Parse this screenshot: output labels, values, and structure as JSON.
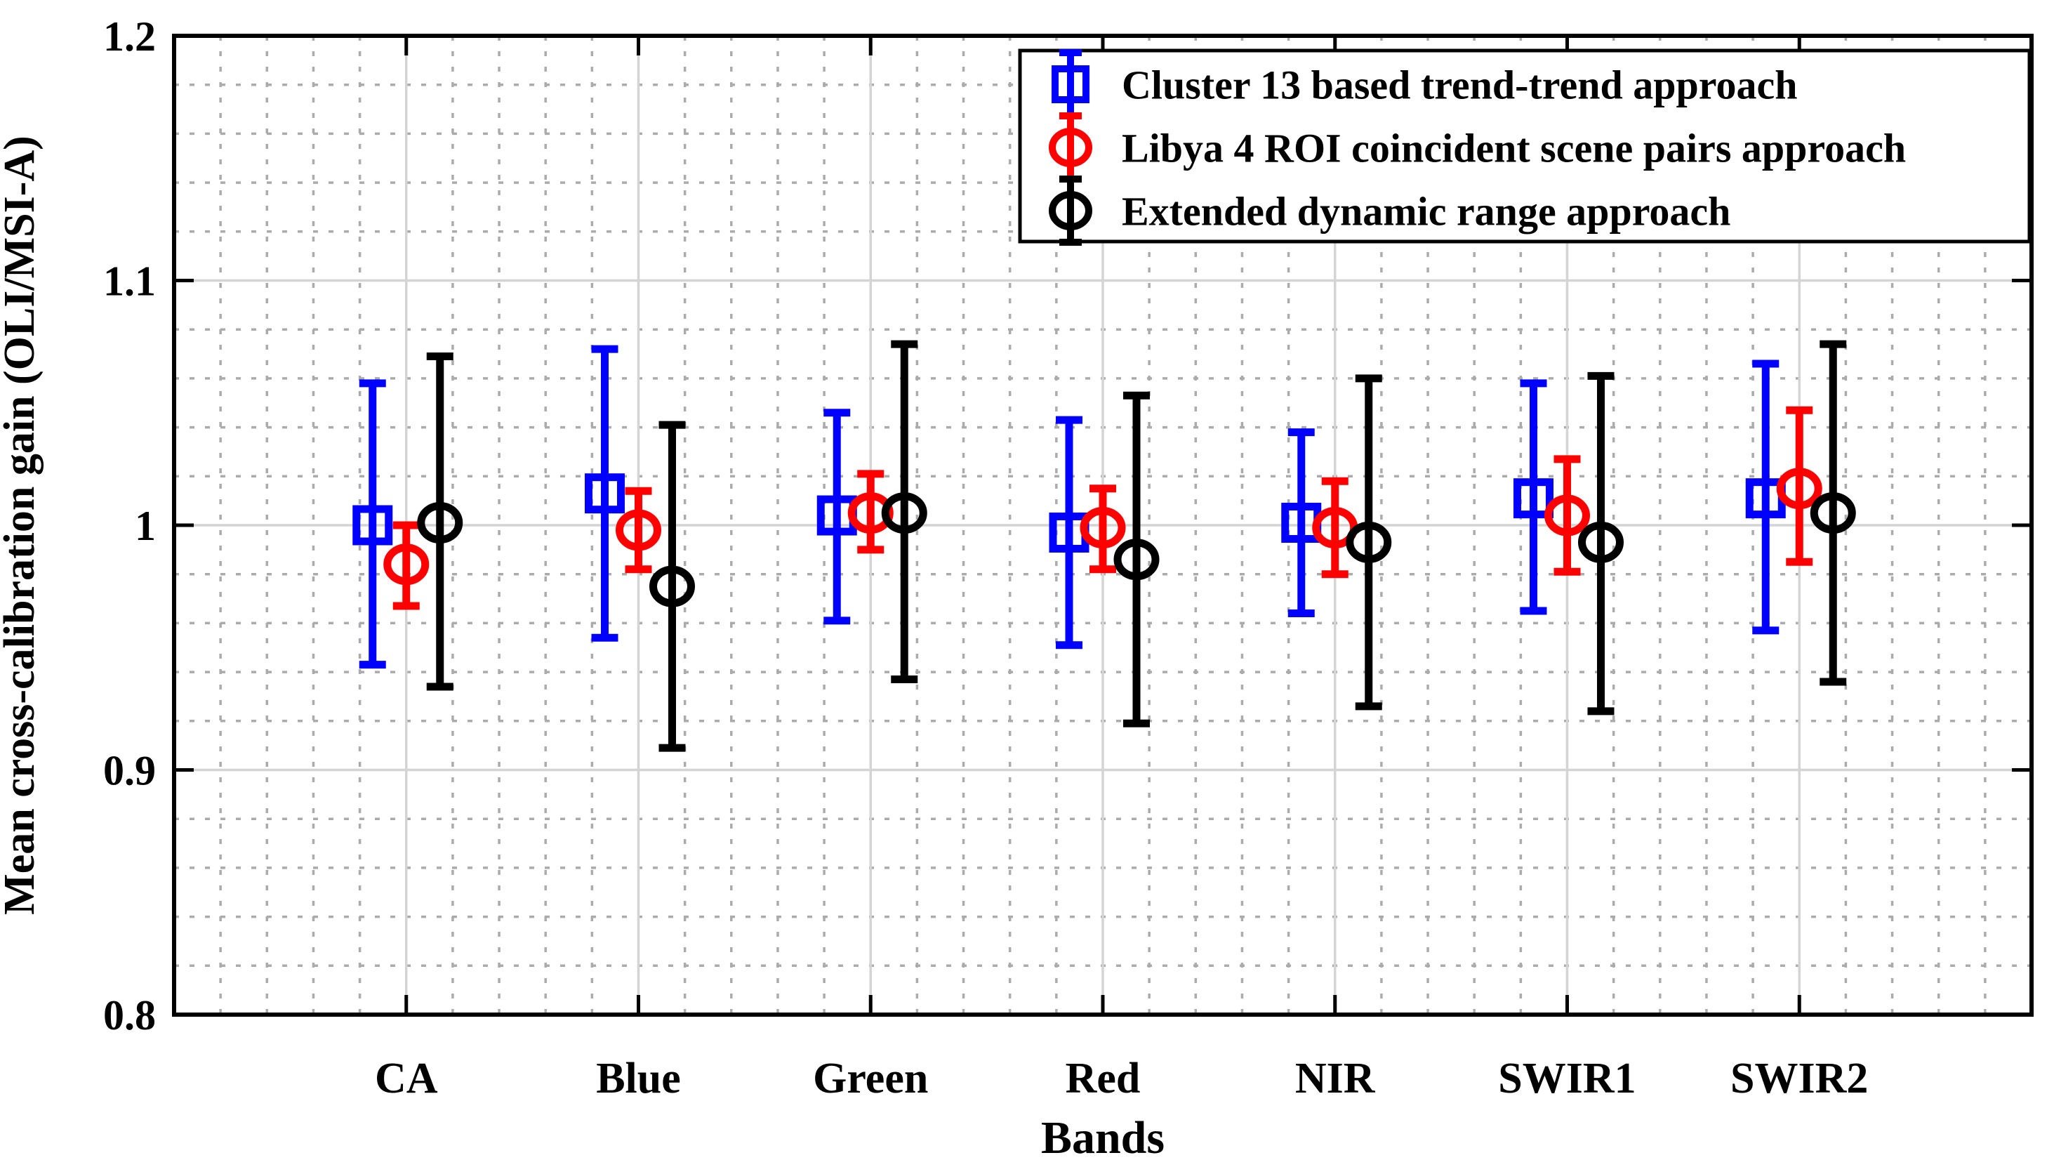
{
  "chart_data": {
    "type": "errorbar",
    "title": "",
    "xlabel": "Bands",
    "ylabel": "Mean cross-calibration gain (OLI/MSI-A)",
    "categories": [
      "CA",
      "Blue",
      "Green",
      "Red",
      "NIR",
      "SWIR1",
      "SWIR2"
    ],
    "ylim": [
      0.8,
      1.2
    ],
    "yticks": [
      {
        "value": 0.8,
        "label": "0.8"
      },
      {
        "value": 0.9,
        "label": "0.9"
      },
      {
        "value": 1.0,
        "label": "1"
      },
      {
        "value": 1.1,
        "label": "1.1"
      },
      {
        "value": 1.2,
        "label": "1.2"
      }
    ],
    "y_minor_step": 0.02,
    "x_minor_subdivisions": 5,
    "grid": {
      "major": true,
      "minor": true
    },
    "legend_position": "top-right-inside",
    "colors": {
      "series_blue": "#0000ff",
      "series_red": "#ff0000",
      "series_black": "#000000",
      "grid_major": "#d4d4d4",
      "grid_minor": "#ababab",
      "axis": "#000000",
      "background": "#ffffff"
    },
    "series": [
      {
        "name": "Cluster 13 based trend-trend approach",
        "marker": "square",
        "color": "#0000ff",
        "values": [
          1.0,
          1.013,
          1.004,
          0.997,
          1.001,
          1.011,
          1.011
        ],
        "upper": [
          1.058,
          1.072,
          1.046,
          1.043,
          1.038,
          1.058,
          1.066
        ],
        "lower": [
          0.943,
          0.954,
          0.961,
          0.951,
          0.964,
          0.965,
          0.957
        ]
      },
      {
        "name": "Libya 4 ROI coincident scene pairs approach",
        "marker": "circle",
        "color": "#ff0000",
        "values": [
          0.984,
          0.998,
          1.005,
          0.999,
          0.999,
          1.004,
          1.015
        ],
        "upper": [
          1.0,
          1.014,
          1.021,
          1.015,
          1.018,
          1.027,
          1.047
        ],
        "lower": [
          0.967,
          0.982,
          0.99,
          0.982,
          0.98,
          0.981,
          0.985
        ]
      },
      {
        "name": "Extended dynamic range approach",
        "marker": "circle",
        "color": "#000000",
        "values": [
          1.001,
          0.975,
          1.005,
          0.986,
          0.993,
          0.993,
          1.005
        ],
        "upper": [
          1.069,
          1.041,
          1.074,
          1.053,
          1.06,
          1.061,
          1.074
        ],
        "lower": [
          0.934,
          0.909,
          0.937,
          0.919,
          0.926,
          0.924,
          0.936
        ]
      }
    ]
  }
}
